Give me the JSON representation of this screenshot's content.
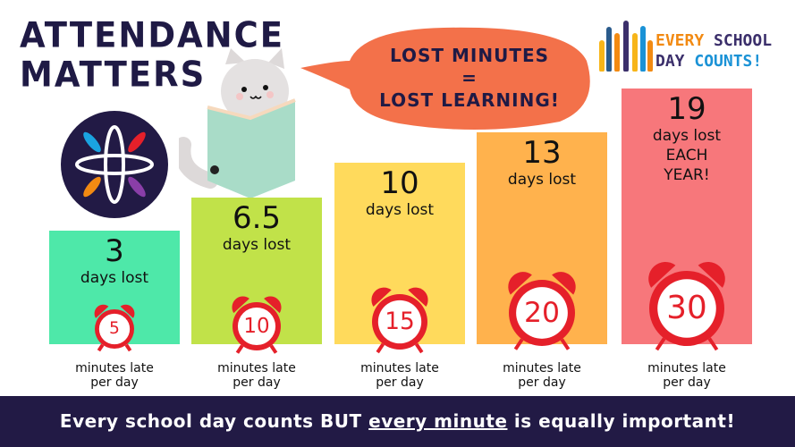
{
  "title": {
    "line1": "ATTENDANCE",
    "line2": "MATTERS"
  },
  "bubble": {
    "line1": "LOST MINUTES",
    "line2": "=",
    "line3": "LOST LEARNING!"
  },
  "logo": {
    "text": "EVERY SCHOOL DAY COUNTS!",
    "w1": "EVERY",
    "w2": "SCHOOL",
    "w3": "DAY",
    "w4": "COUNTS!"
  },
  "bars": [
    {
      "days": "3",
      "lines": [
        "days lost"
      ],
      "minutes": "5",
      "color": "#4ee8a9"
    },
    {
      "days": "6.5",
      "lines": [
        "days lost"
      ],
      "minutes": "10",
      "color": "#c1e249"
    },
    {
      "days": "10",
      "lines": [
        "days lost"
      ],
      "minutes": "15",
      "color": "#ffda5c"
    },
    {
      "days": "13",
      "lines": [
        "days lost"
      ],
      "minutes": "20",
      "color": "#ffb24d"
    },
    {
      "days": "19",
      "lines": [
        "days lost",
        "EACH",
        "YEAR!"
      ],
      "minutes": "30",
      "color": "#f7777b"
    }
  ],
  "minutes_label": {
    "line1": "minutes late",
    "line2": "per day"
  },
  "footer": {
    "pre": "Every school day counts BUT ",
    "emph": "every minute",
    "post": " is equally important!"
  },
  "colors": {
    "navy": "#221a45",
    "clock_red": "#e5202a",
    "bubble": "#f3714a"
  }
}
